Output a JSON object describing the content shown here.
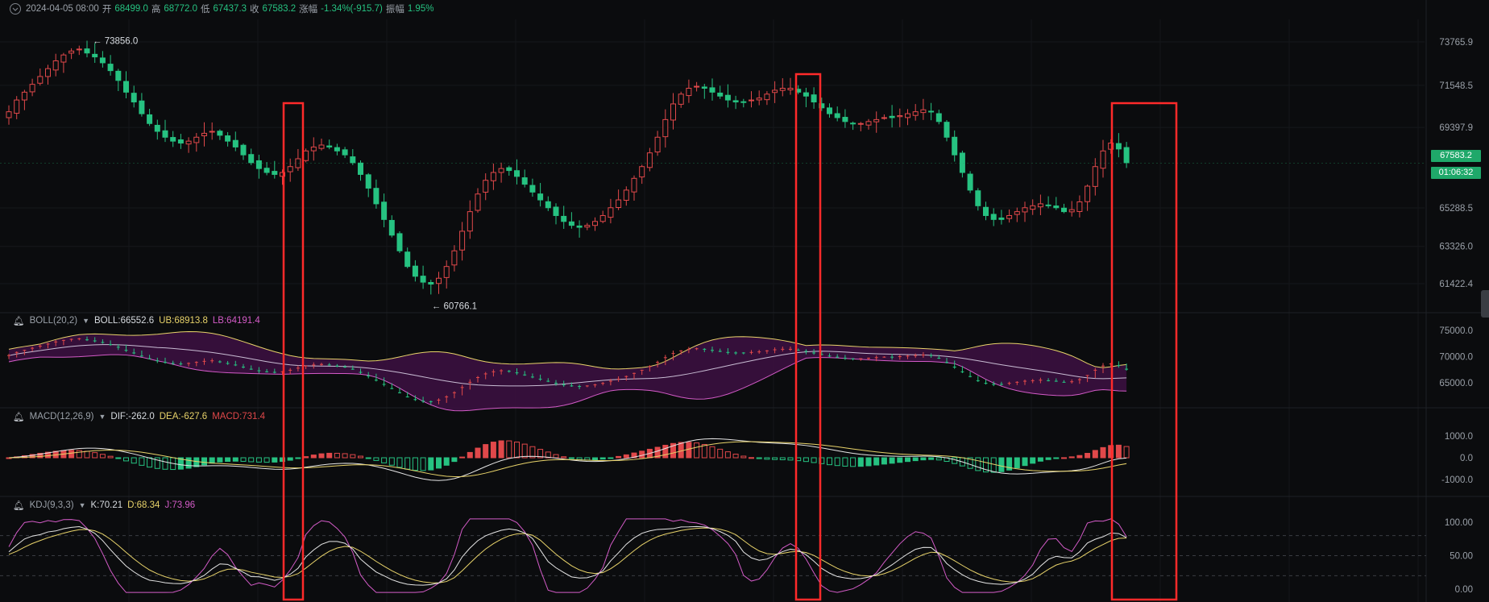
{
  "header": {
    "datetime": "2024-04-05 08:00",
    "open_label": "开",
    "open": "68499.0",
    "high_label": "高",
    "high": "68772.0",
    "low_label": "低",
    "low": "67437.3",
    "close_label": "收",
    "close": "67583.2",
    "change_label": "涨幅",
    "change": "-1.34%(-915.7)",
    "amplitude_label": "振幅",
    "amplitude": "1.95%"
  },
  "price_axis": {
    "ticks": [
      "73765.9",
      "71548.5",
      "69397.9",
      "65288.5",
      "63326.0",
      "61422.4"
    ],
    "last_price": "67583.2",
    "countdown": "01:06:32",
    "max_marker": "73856.0",
    "min_marker": "60766.1"
  },
  "boll": {
    "name": "BOLL(20,2)",
    "mid": "BOLL:66552.6",
    "ub": "UB:68913.8",
    "lb": "LB:64191.4",
    "ticks": [
      "75000.0",
      "70000.0",
      "65000.0"
    ]
  },
  "macd": {
    "name": "MACD(12,26,9)",
    "dif": "DIF:-262.0",
    "dea": "DEA:-627.6",
    "macd": "MACD:731.4",
    "ticks": [
      "1000.0",
      "0.0",
      "-1000.0"
    ]
  },
  "kdj": {
    "name": "KDJ(9,3,3)",
    "k": "K:70.21",
    "d": "D:68.34",
    "j": "J:73.96",
    "ticks": [
      "100.00",
      "50.00",
      "0.00"
    ]
  },
  "colors": {
    "up": "#e0484a",
    "down": "#26c281",
    "highlight": "#ff2a2a"
  },
  "chart_data": {
    "type": "candlestick",
    "closes": [
      70200,
      70800,
      71200,
      71600,
      72000,
      72400,
      72800,
      73100,
      73300,
      73400,
      73200,
      73000,
      72700,
      72300,
      71800,
      71200,
      70700,
      70100,
      69600,
      69200,
      68900,
      68700,
      68600,
      68700,
      68900,
      69100,
      69200,
      69000,
      68700,
      68400,
      68000,
      67600,
      67300,
      67100,
      67000,
      67100,
      67400,
      67800,
      68200,
      68400,
      68500,
      68400,
      68200,
      68000,
      67600,
      67000,
      66300,
      65500,
      64700,
      63900,
      63100,
      62300,
      61800,
      61500,
      61400,
      61700,
      62300,
      63100,
      64100,
      65100,
      66000,
      66700,
      67100,
      67300,
      67200,
      66900,
      66500,
      66100,
      65700,
      65300,
      64900,
      64600,
      64400,
      64300,
      64400,
      64600,
      64900,
      65300,
      65700,
      66200,
      66800,
      67400,
      68100,
      68900,
      69800,
      70600,
      71100,
      71400,
      71500,
      71400,
      71200,
      71000,
      70800,
      70700,
      70700,
      70800,
      70900,
      71100,
      71300,
      71400,
      71400,
      71200,
      71000,
      70700,
      70400,
      70100,
      69900,
      69700,
      69600,
      69600,
      69700,
      69800,
      69900,
      69900,
      70000,
      70100,
      70200,
      70300,
      70200,
      69700,
      68900,
      68000,
      67100,
      66200,
      65400,
      64900,
      64700,
      64700,
      64900,
      65100,
      65300,
      65400,
      65500,
      65400,
      65300,
      65100,
      65200,
      65600,
      66400,
      67400,
      68200,
      68600,
      68300,
      67600
    ]
  }
}
